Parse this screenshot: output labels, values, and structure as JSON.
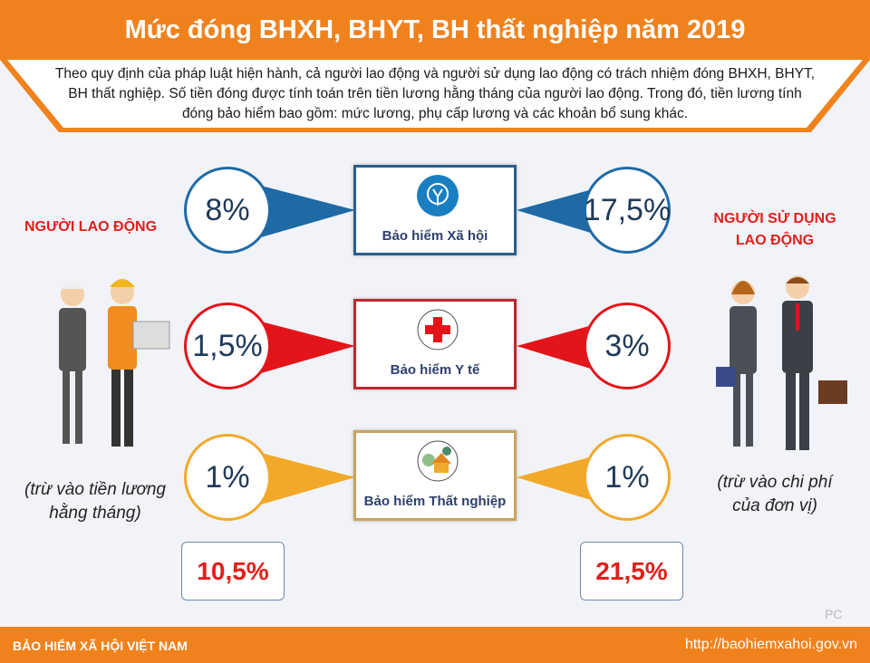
{
  "title": "Mức đóng BHXH, BHYT, BH thất nghiệp năm 2019",
  "intro": "Theo quy định của pháp luật hiện hành, cả người lao động và người sử dụng lao động có trách nhiệm đóng BHXH, BHYT, BH thất nghiệp. Số tiền đóng được tính toán trên tiền lương hằng tháng của người lao động. Trong đó, tiền lương tính đóng bảo hiểm bao gồm: mức lương, phụ cấp lương và các khoản bổ sung khác.",
  "employee": {
    "title": "NGƯỜI LAO ĐỘNG",
    "note_line1": "(trừ vào tiền lương",
    "note_line2": "hằng tháng)",
    "total": "10,5%"
  },
  "employer": {
    "title_line1": "NGƯỜI SỬ DỤNG",
    "title_line2": "LAO ĐỘNG",
    "note_line1": "(trừ vào chi phí",
    "note_line2": "của đơn vị)",
    "total": "21,5%"
  },
  "rows": [
    {
      "label": "Bảo hiểm Xã hội",
      "employee": "8%",
      "employer": "17,5%",
      "color": "#1f6aa5",
      "icon": "social-insurance-logo-icon"
    },
    {
      "label": "Bảo hiểm Y tế",
      "employee": "1,5%",
      "employer": "3%",
      "color": "#e3151a",
      "icon": "red-cross-icon"
    },
    {
      "label": "Bảo hiểm Thất nghiệp",
      "employee": "1%",
      "employer": "1%",
      "color": "#f2a92a",
      "icon": "house-icon"
    }
  ],
  "watermark": "PC",
  "footer": {
    "org": "BẢO HIỂM XÃ HỘI VIỆT NAM",
    "url": "http://baohiemxahoi.gov.vn"
  },
  "logo_text": "BẢO HIỂM XÃ HỘI VIỆT NAM"
}
